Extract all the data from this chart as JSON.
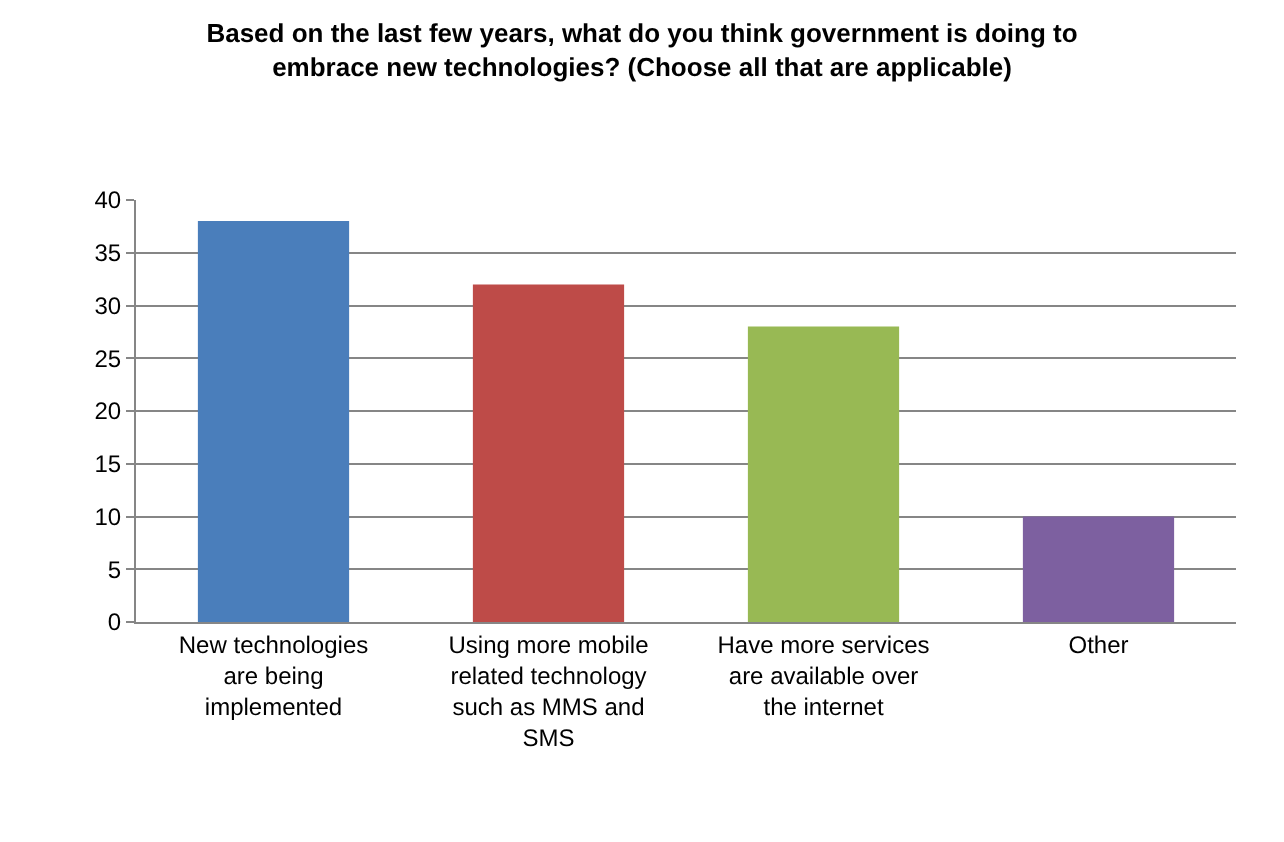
{
  "chart_data": {
    "type": "bar",
    "title": "Based on the last few years, what do you think government is doing to embrace new technologies? (Choose all that are applicable)",
    "categories": [
      "New technologies are being implemented",
      "Using more mobile related technology such as MMS and SMS",
      "Have more services are available over the internet",
      "Other"
    ],
    "values": [
      38,
      32,
      28,
      10
    ],
    "colors": [
      "#4a7ebb",
      "#be4b48",
      "#98b954",
      "#7d60a0"
    ],
    "ylim": [
      0,
      40
    ],
    "yticks": [
      0,
      5,
      10,
      15,
      20,
      25,
      30,
      35,
      40
    ],
    "grid": "y"
  }
}
